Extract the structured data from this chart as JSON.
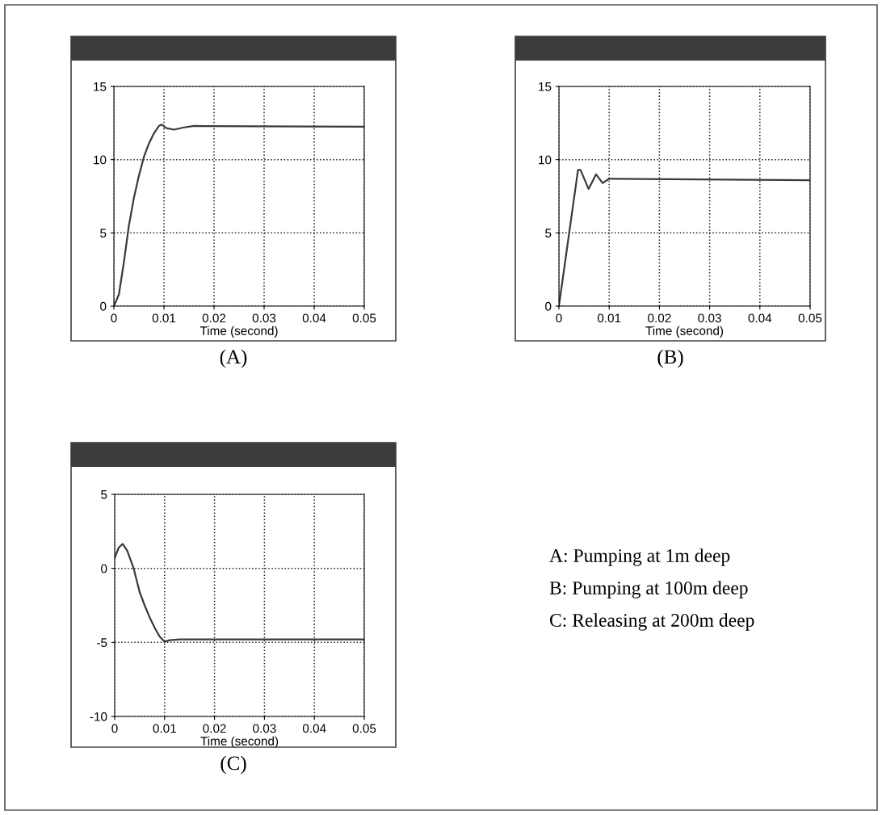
{
  "chart_data": [
    {
      "type": "line",
      "xlabel": "Time (second)",
      "annotations": [
        "(A)"
      ],
      "xlim": [
        0,
        0.05
      ],
      "ylim": [
        0,
        15
      ],
      "xticks": [
        0,
        0.01,
        0.02,
        0.03,
        0.04,
        0.05
      ],
      "yticks": [
        0,
        5,
        10,
        15
      ],
      "grid": true,
      "line_style": "solid",
      "series": [
        {
          "color": "#3a3a3a",
          "x": [
            0,
            0.001,
            0.002,
            0.003,
            0.004,
            0.005,
            0.006,
            0.007,
            0.008,
            0.009,
            0.0095,
            0.0105,
            0.012,
            0.014,
            0.016,
            0.05
          ],
          "values": [
            0,
            0.8,
            3,
            5.5,
            7.4,
            8.9,
            10.2,
            11.1,
            11.8,
            12.3,
            12.4,
            12.15,
            12.05,
            12.2,
            12.3,
            12.25
          ]
        }
      ]
    },
    {
      "type": "line",
      "xlabel": "Time (second)",
      "annotations": [
        "(B)"
      ],
      "xlim": [
        0,
        0.05
      ],
      "ylim": [
        0,
        15
      ],
      "xticks": [
        0,
        0.01,
        0.02,
        0.03,
        0.04,
        0.05
      ],
      "yticks": [
        0,
        5,
        10,
        15
      ],
      "grid": true,
      "line_style": "solid",
      "series": [
        {
          "color": "#3a3a3a",
          "x": [
            0,
            0.0038,
            0.0043,
            0.0059,
            0.0074,
            0.0087,
            0.01,
            0.0498
          ],
          "values": [
            0,
            9.3,
            9.3,
            8.0,
            9.0,
            8.4,
            8.7,
            8.6
          ]
        }
      ]
    },
    {
      "type": "line",
      "xlabel": "Time (second)",
      "annotations": [
        "(C)"
      ],
      "xlim": [
        0,
        0.05
      ],
      "ylim": [
        -10,
        5
      ],
      "xticks": [
        0,
        0.01,
        0.02,
        0.03,
        0.04,
        0.05
      ],
      "yticks": [
        -10,
        -5,
        0,
        5
      ],
      "grid": true,
      "line_style": "solid",
      "series": [
        {
          "color": "#3a3a3a",
          "x": [
            0,
            0.0008,
            0.0016,
            0.0025,
            0.0038,
            0.005,
            0.006,
            0.007,
            0.008,
            0.009,
            0.01,
            0.011,
            0.013,
            0.05
          ],
          "values": [
            0.7,
            1.4,
            1.65,
            1.2,
            0,
            -1.6,
            -2.5,
            -3.3,
            -4.0,
            -4.6,
            -4.95,
            -4.85,
            -4.8,
            -4.8
          ]
        }
      ]
    },
    {
      "type": "other",
      "annotations": [
        "A: Pumping at 1m deep",
        "B: Pumping at 100m deep",
        "C: Releasing at 200m deep"
      ]
    }
  ]
}
